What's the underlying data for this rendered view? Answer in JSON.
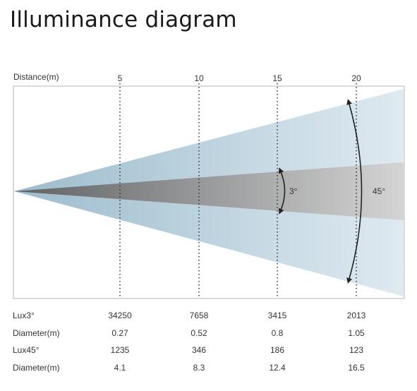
{
  "title": "Illuminance diagram",
  "diagram": {
    "distance_label": "Distance(m)",
    "distances": [
      "5",
      "10",
      "15",
      "20"
    ],
    "narrow_angle": "3°",
    "wide_angle": "45°"
  },
  "table": {
    "rows": [
      {
        "label": "Lux3°",
        "values": [
          "34250",
          "7658",
          "3415",
          "2013"
        ]
      },
      {
        "label": "Diameter(m)",
        "values": [
          "0.27",
          "0.52",
          "0.8",
          "1.05"
        ]
      },
      {
        "label": "Lux45°",
        "values": [
          "1235",
          "346",
          "186",
          "123"
        ]
      },
      {
        "label": "Diameter(m)",
        "values": [
          "4.1",
          "8.3",
          "12.4",
          "16.5"
        ]
      }
    ]
  },
  "colors": {
    "wide_beam_light": "#dfeaf1",
    "wide_beam_dark": "#9dbccd",
    "narrow_beam_dark": "#5f6163",
    "narrow_beam_light": "#d4d4d4",
    "frame": "#b5b5b5",
    "guide_line": "#333333"
  }
}
